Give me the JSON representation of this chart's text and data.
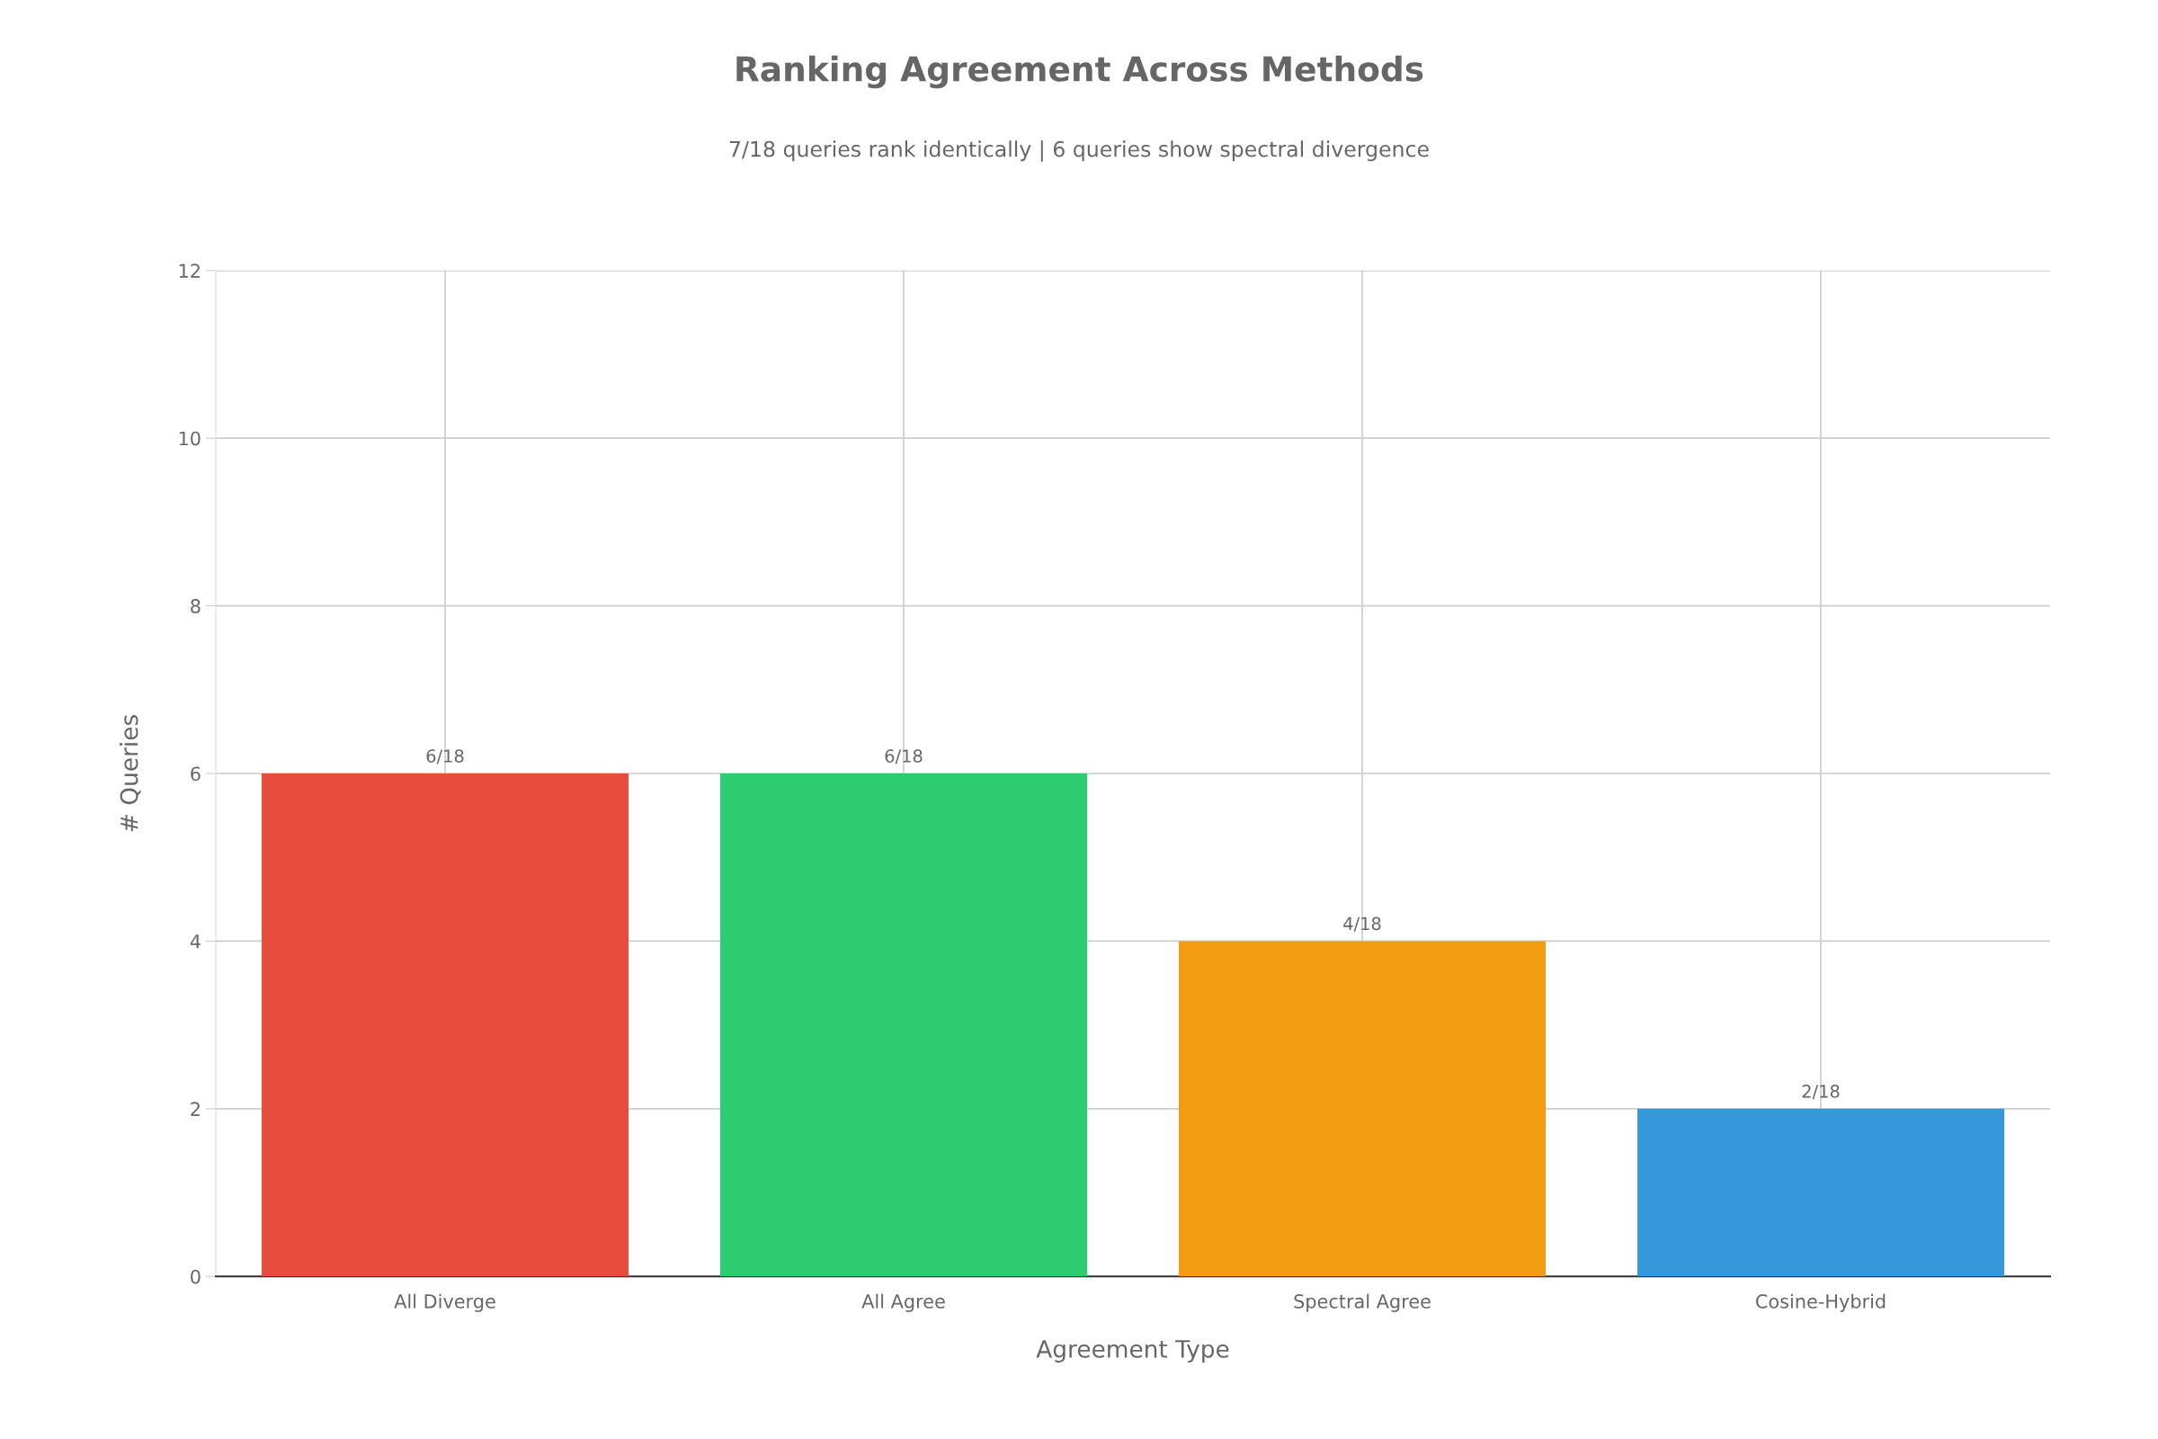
{
  "chart_data": {
    "type": "bar",
    "title": "Ranking Agreement Across Methods",
    "subtitle": "7/18 queries rank identically | 6 queries show spectral divergence",
    "xlabel": "Agreement Type",
    "ylabel": "# Queries",
    "categories": [
      "All Diverge",
      "All Agree",
      "Spectral Agree",
      "Cosine-Hybrid"
    ],
    "values": [
      6,
      6,
      4,
      2
    ],
    "colors": [
      "#e74c3c",
      "#2ecc71",
      "#f39c12",
      "#3498db"
    ],
    "value_labels": [
      "6/18",
      "6/18",
      "4/18",
      "2/18"
    ],
    "ylim": [
      0,
      12
    ],
    "yticks": [
      0,
      2,
      4,
      6,
      8,
      10,
      12
    ],
    "grid": true,
    "legend": false
  }
}
